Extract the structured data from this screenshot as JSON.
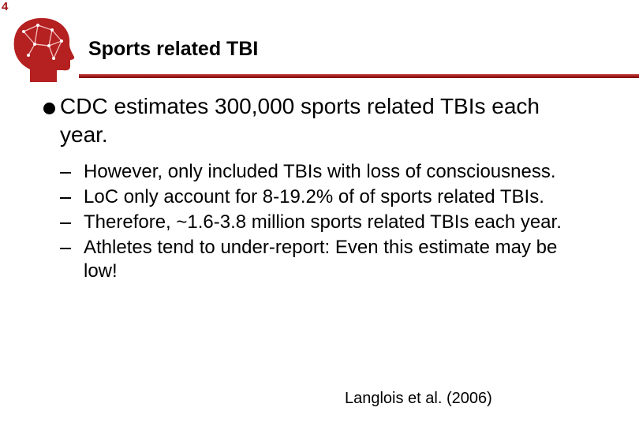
{
  "slide_number": "4",
  "title": "Sports related TBI",
  "bullets": [
    {
      "text": "CDC estimates 300,000 sports related TBIs each year.",
      "sub_bullets": [
        "However, only included TBIs with loss of consciousness.",
        "LoC only account for 8-19.2% of of sports related TBIs.",
        "Therefore, ~1.6-3.8 million sports related TBIs each year.",
        "Athletes tend to under-report: Even this estimate may be low!"
      ]
    }
  ],
  "citation": "Langlois et al. (2006)"
}
